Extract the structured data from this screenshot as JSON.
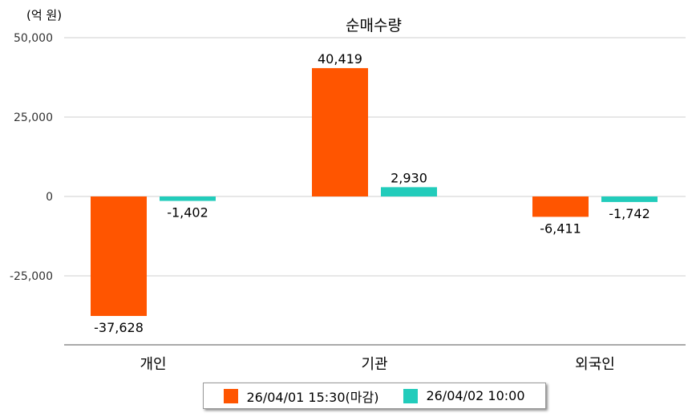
{
  "chart_data": {
    "type": "bar",
    "title": "순매수량",
    "unit_label": "(억 원)",
    "categories": [
      "개인",
      "기관",
      "외국인"
    ],
    "series": [
      {
        "name": "26/04/01 15:30(마감)",
        "color": "#FF5500",
        "values": [
          -37628,
          40419,
          -6411
        ],
        "labels": [
          "-37,628",
          "40,419",
          "-6,411"
        ]
      },
      {
        "name": "26/04/02 10:00",
        "color": "#22CCBB",
        "values": [
          -1402,
          2930,
          -1742
        ],
        "labels": [
          "-1,402",
          "2,930",
          "-1,742"
        ]
      }
    ],
    "y_ticks": [
      50000,
      25000,
      0,
      -25000
    ],
    "y_tick_labels": [
      "50,000",
      "25,000",
      "0",
      "-25,000"
    ],
    "ylim": [
      -45000,
      50000
    ],
    "grid": true,
    "legend_position": "bottom"
  }
}
